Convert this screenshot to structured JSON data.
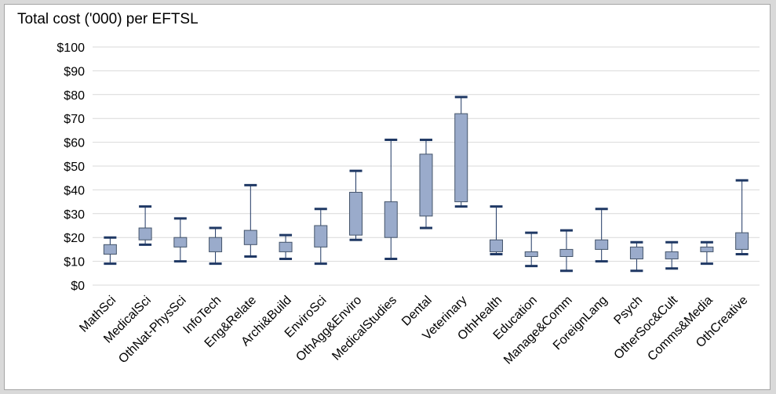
{
  "chart_data": {
    "type": "box",
    "title": "Total cost ('000) per EFTSL",
    "xlabel": "",
    "ylabel": "",
    "ylim": [
      0,
      100
    ],
    "y_ticks": [
      0,
      10,
      20,
      30,
      40,
      50,
      60,
      70,
      80,
      90,
      100
    ],
    "y_tick_labels": [
      "$0",
      "$10",
      "$20",
      "$30",
      "$40",
      "$50",
      "$60",
      "$70",
      "$80",
      "$90",
      "$100"
    ],
    "grid": true,
    "legend": "none",
    "colors": {
      "box_fill": "#9aabcb",
      "box_stroke": "#44546a",
      "whisker": "#1f3864",
      "cap": "#1f3864"
    },
    "categories": [
      "MathSci",
      "MedicalSci",
      "OthNat-PhysSci",
      "InfoTech",
      "Eng&Relate",
      "Archi&Build",
      "EnviroSci",
      "OthAgg&Enviro",
      "MedicalStudies",
      "Dental",
      "Veterinary",
      "OthHealth",
      "Education",
      "Manage&Comm",
      "ForeignLang",
      "Psych",
      "OtherSoc&Cult",
      "Comms&Media",
      "OthCreative"
    ],
    "boxes": [
      {
        "min": 9,
        "q1": 13,
        "q3": 17,
        "max": 20
      },
      {
        "min": 17,
        "q1": 19,
        "q3": 24,
        "max": 33
      },
      {
        "min": 10,
        "q1": 16,
        "q3": 20,
        "max": 28
      },
      {
        "min": 9,
        "q1": 14,
        "q3": 20,
        "max": 24
      },
      {
        "min": 12,
        "q1": 17,
        "q3": 23,
        "max": 42
      },
      {
        "min": 11,
        "q1": 14,
        "q3": 18,
        "max": 21
      },
      {
        "min": 9,
        "q1": 16,
        "q3": 25,
        "max": 32
      },
      {
        "min": 19,
        "q1": 21,
        "q3": 39,
        "max": 48
      },
      {
        "min": 11,
        "q1": 20,
        "q3": 35,
        "max": 61
      },
      {
        "min": 24,
        "q1": 29,
        "q3": 55,
        "max": 61
      },
      {
        "min": 33,
        "q1": 35,
        "q3": 72,
        "max": 79
      },
      {
        "min": 13,
        "q1": 14,
        "q3": 19,
        "max": 33
      },
      {
        "min": 8,
        "q1": 12,
        "q3": 14,
        "max": 22
      },
      {
        "min": 6,
        "q1": 12,
        "q3": 15,
        "max": 23
      },
      {
        "min": 10,
        "q1": 15,
        "q3": 19,
        "max": 32
      },
      {
        "min": 6,
        "q1": 11,
        "q3": 16,
        "max": 18
      },
      {
        "min": 7,
        "q1": 11,
        "q3": 14,
        "max": 18
      },
      {
        "min": 9,
        "q1": 14,
        "q3": 16,
        "max": 18
      },
      {
        "min": 13,
        "q1": 15,
        "q3": 22,
        "max": 44
      }
    ]
  }
}
